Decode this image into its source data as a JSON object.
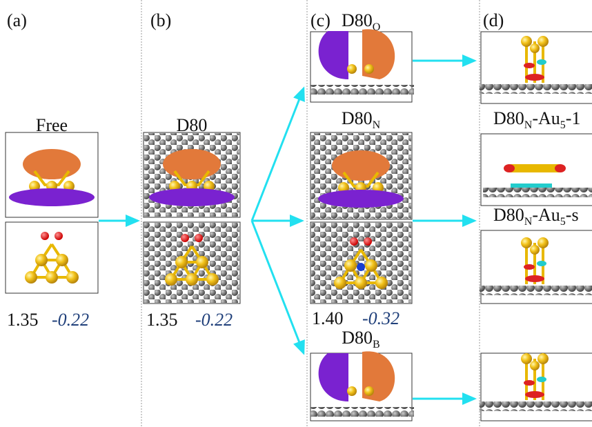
{
  "panel_labels": [
    "(a)",
    "(b)",
    "(c)",
    "(d)"
  ],
  "structures": {
    "free": [
      "Free"
    ],
    "d80": [
      "D80"
    ],
    "d80_o": [
      "D80",
      "O"
    ],
    "d80_n": [
      "D80",
      "N"
    ],
    "d80_b": [
      "D80",
      "B"
    ],
    "d80_n_au5_1": [
      "D80",
      "N",
      "-Au",
      "5",
      "-1"
    ],
    "d80_n_au5_s": [
      "D80",
      "N",
      "-Au",
      "5",
      "-s"
    ]
  },
  "energies": {
    "free": [
      "1.35",
      "-0.22"
    ],
    "d80": [
      "1.35",
      "-0.22"
    ],
    "d80_n": [
      "1.40",
      "-0.32"
    ]
  }
}
